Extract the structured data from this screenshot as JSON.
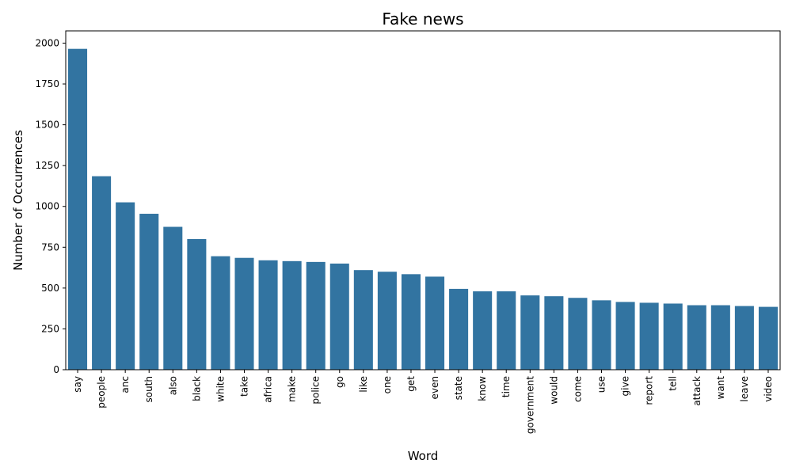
{
  "chart_data": {
    "type": "bar",
    "title": "Fake news",
    "xlabel": "Word",
    "ylabel": "Number of Occurrences",
    "ylim": [
      0,
      2075
    ],
    "yticks": [
      0,
      250,
      500,
      750,
      1000,
      1250,
      1500,
      1750,
      2000
    ],
    "grid": false,
    "bar_color": "#3274a1",
    "categories": [
      "say",
      "people",
      "anc",
      "south",
      "also",
      "black",
      "white",
      "take",
      "africa",
      "make",
      "police",
      "go",
      "like",
      "one",
      "get",
      "even",
      "state",
      "know",
      "time",
      "government",
      "would",
      "come",
      "use",
      "give",
      "report",
      "tell",
      "attack",
      "want",
      "leave",
      "video"
    ],
    "values": [
      1965,
      1185,
      1025,
      955,
      875,
      800,
      695,
      685,
      670,
      665,
      660,
      650,
      610,
      600,
      585,
      570,
      495,
      480,
      480,
      455,
      450,
      440,
      425,
      415,
      410,
      405,
      395,
      395,
      390,
      385
    ]
  }
}
